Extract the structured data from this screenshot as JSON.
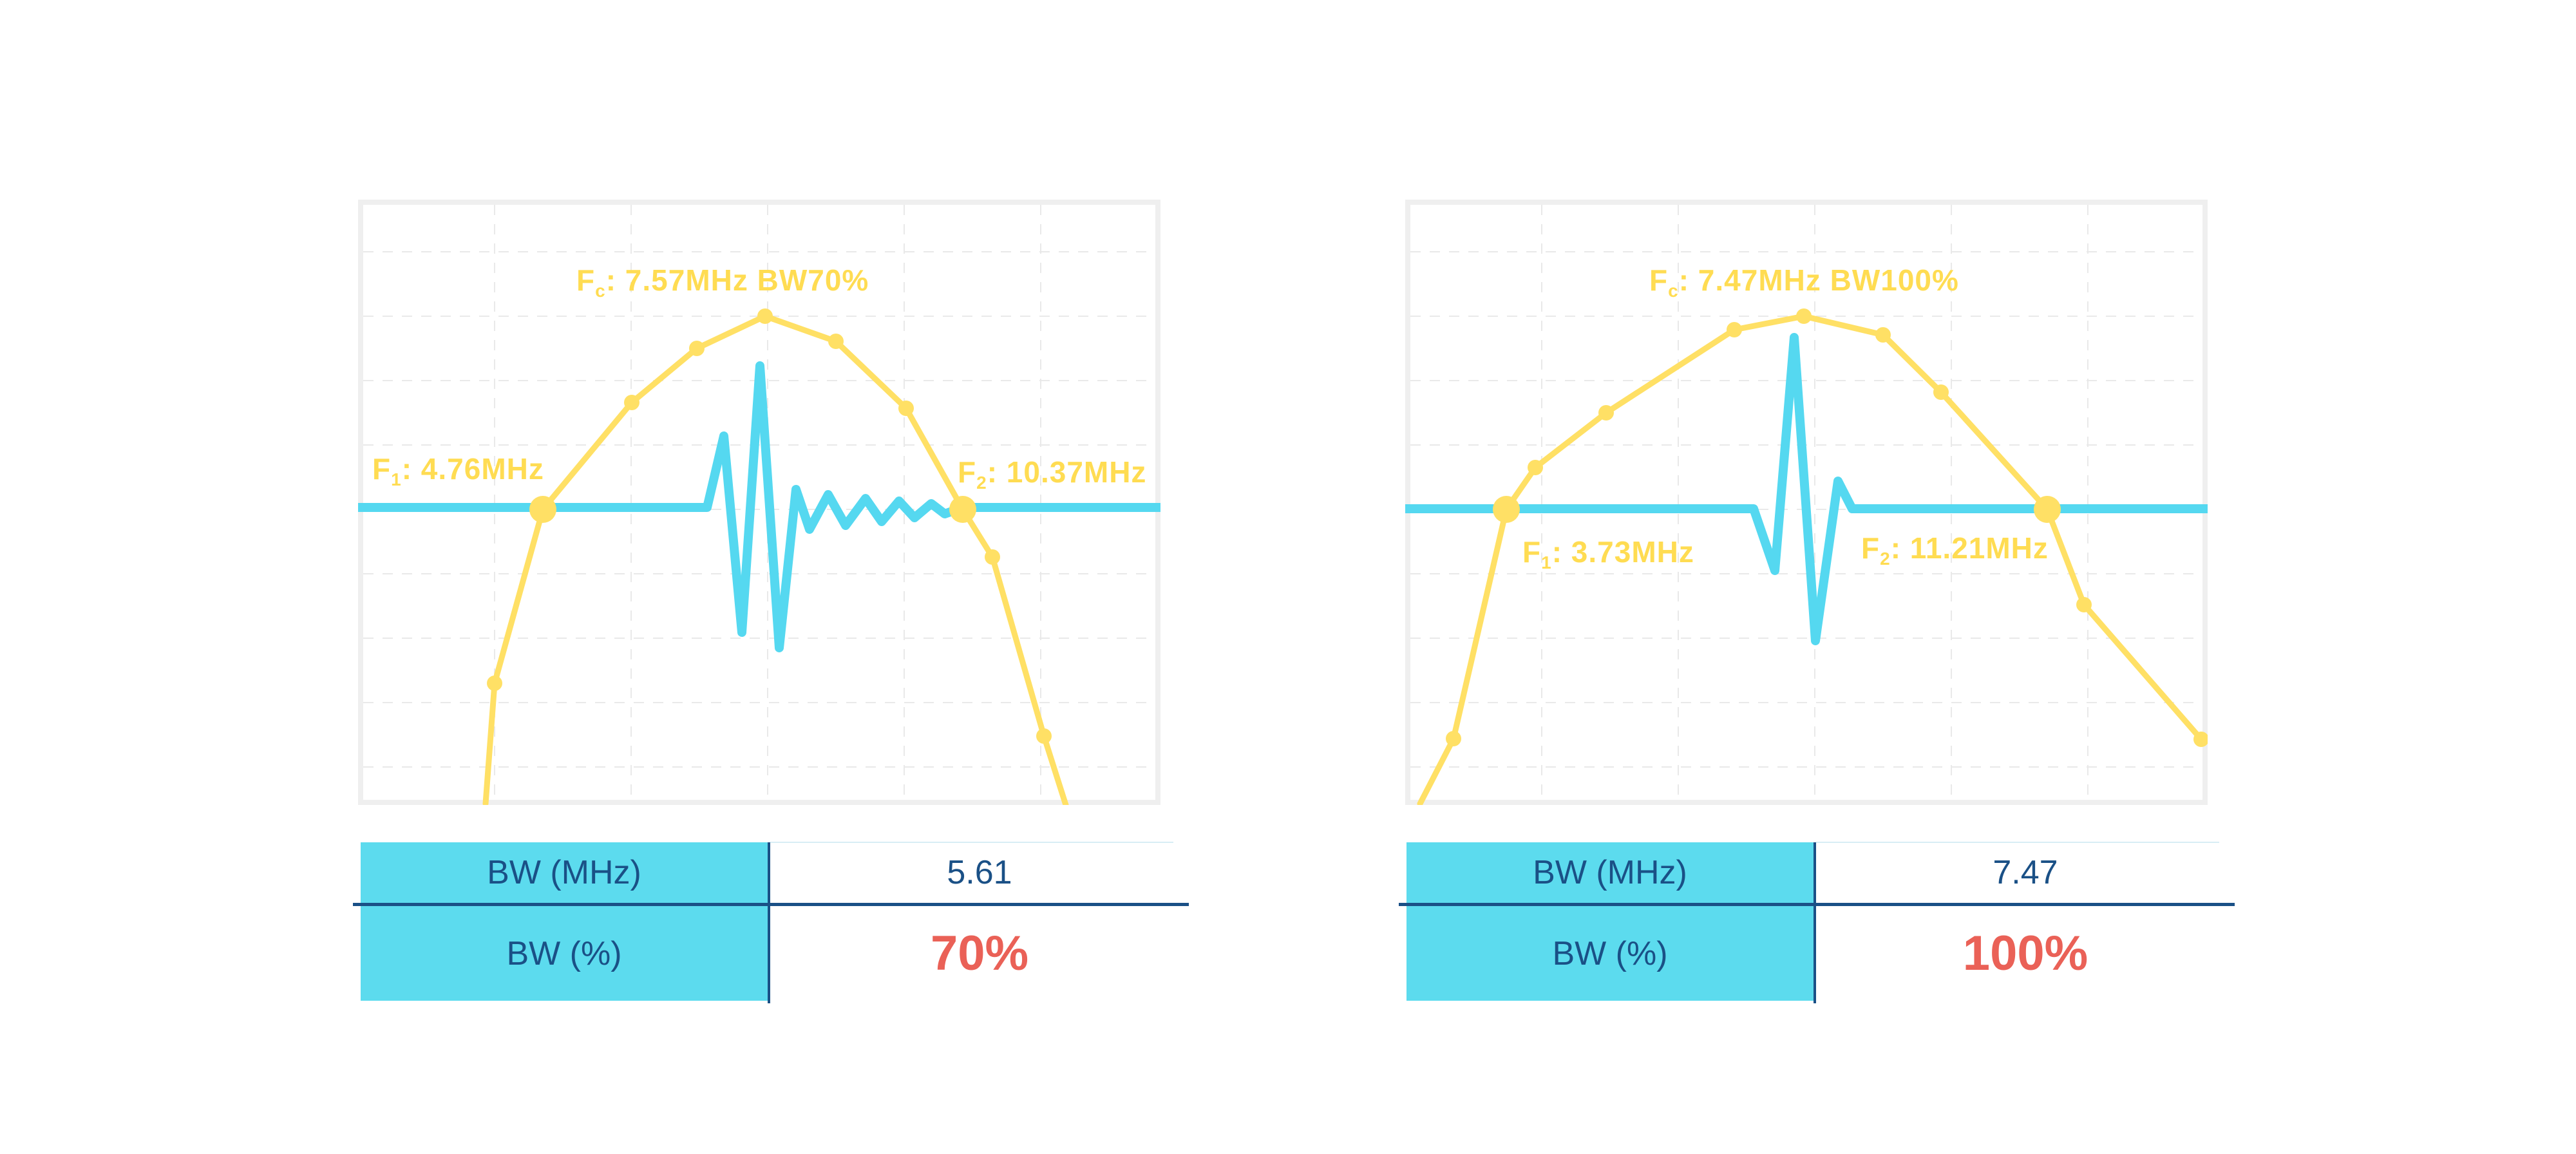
{
  "colors": {
    "envelope_yellow": "#FFE065",
    "label_yellow": "#FFDC52",
    "pulse_cyan": "#55D8F0",
    "table_header_cyan": "#5CDBEE",
    "navy": "#1A5086",
    "accent_red": "#EA6157",
    "grid_gray": "#E9E9E9",
    "plot_border_gray": "#EFEFEF"
  },
  "chart_data": [
    {
      "type": "line",
      "title": "Fc: 7.57MHz BW70%",
      "annotations": {
        "fc": {
          "base": "F",
          "sub": "c",
          "rest": ": 7.57MHz BW70%"
        },
        "f1": {
          "base": "F",
          "sub": "1",
          "rest": ": 4.76MHz"
        },
        "f2": {
          "base": "F",
          "sub": "2",
          "rest": ": 10.37MHz"
        }
      },
      "fc_mhz": 7.57,
      "f1_mhz": 4.76,
      "f2_mhz": 10.37,
      "bw_mhz": 5.61,
      "bw_pct": 70,
      "grid": {
        "v": [
          212,
          424,
          636,
          848,
          1060
        ],
        "h": [
          81,
          181,
          281,
          381,
          481,
          581,
          681,
          781,
          881
        ]
      },
      "series": [
        {
          "name": "spectrum-envelope",
          "color": "#FFE065",
          "points": [
            [
              198,
              938
            ],
            [
              212,
              751
            ],
            [
              287,
              481
            ],
            [
              425,
              315
            ],
            [
              526,
              231
            ],
            [
              632,
              181
            ],
            [
              742,
              220
            ],
            [
              851,
              324
            ],
            [
              939,
              481
            ],
            [
              985,
              555
            ],
            [
              1065,
              833
            ],
            [
              1099,
              940
            ]
          ],
          "markers": [
            [
              212,
              751
            ],
            [
              425,
              315
            ],
            [
              526,
              231
            ],
            [
              632,
              181
            ],
            [
              742,
              220
            ],
            [
              851,
              324
            ],
            [
              985,
              555
            ],
            [
              1065,
              833
            ]
          ],
          "big_markers": [
            [
              287,
              481
            ],
            [
              939,
              481
            ]
          ]
        },
        {
          "name": "pulse-echo-signal",
          "color": "#55D8F0",
          "points": [
            [
              0,
              478
            ],
            [
              542,
              478
            ],
            [
              568,
              367
            ],
            [
              596,
              672
            ],
            [
              624,
              258
            ],
            [
              654,
              696
            ],
            [
              680,
              450
            ],
            [
              701,
              512
            ],
            [
              730,
              458
            ],
            [
              757,
              506
            ],
            [
              788,
              464
            ],
            [
              813,
              500
            ],
            [
              840,
              468
            ],
            [
              864,
              494
            ],
            [
              890,
              472
            ],
            [
              911,
              488
            ],
            [
              939,
              478
            ],
            [
              1246,
              478
            ]
          ]
        }
      ],
      "table": {
        "rows": [
          {
            "label": "BW (MHz)",
            "value": "5.61"
          },
          {
            "label": "BW (%)",
            "value": "70%"
          }
        ]
      }
    },
    {
      "type": "line",
      "title": "Fc: 7.47MHz BW100%",
      "annotations": {
        "fc": {
          "base": "F",
          "sub": "c",
          "rest": ": 7.47MHz BW100%"
        },
        "f1": {
          "base": "F",
          "sub": "1",
          "rest": ": 3.73MHz"
        },
        "f2": {
          "base": "F",
          "sub": "2",
          "rest": ": 11.21MHz"
        }
      },
      "fc_mhz": 7.47,
      "f1_mhz": 3.73,
      "f2_mhz": 11.21,
      "bw_mhz": 7.47,
      "bw_pct": 100,
      "grid": {
        "v": [
          212,
          424,
          636,
          848,
          1060
        ],
        "h": [
          81,
          181,
          281,
          381,
          481,
          581,
          681,
          781,
          881
        ]
      },
      "series": [
        {
          "name": "spectrum-envelope",
          "color": "#FFE065",
          "points": [
            [
              23,
              938
            ],
            [
              75,
              837
            ],
            [
              157,
              481
            ],
            [
              202,
              416
            ],
            [
              312,
              331
            ],
            [
              511,
              202
            ],
            [
              619,
              181
            ],
            [
              742,
              210
            ],
            [
              832,
              299
            ],
            [
              997,
              481
            ],
            [
              1054,
              629
            ],
            [
              1236,
              838
            ]
          ],
          "markers": [
            [
              75,
              837
            ],
            [
              202,
              416
            ],
            [
              312,
              331
            ],
            [
              511,
              202
            ],
            [
              619,
              181
            ],
            [
              742,
              210
            ],
            [
              832,
              299
            ],
            [
              1054,
              629
            ],
            [
              1236,
              838
            ]
          ],
          "big_markers": [
            [
              157,
              481
            ],
            [
              997,
              481
            ]
          ]
        },
        {
          "name": "pulse-echo-signal",
          "color": "#55D8F0",
          "points": [
            [
              0,
              480
            ],
            [
              541,
              480
            ],
            [
              574,
              576
            ],
            [
              604,
              214
            ],
            [
              637,
              685
            ],
            [
              672,
              437
            ],
            [
              694,
              480
            ],
            [
              1246,
              480
            ]
          ]
        }
      ],
      "table": {
        "rows": [
          {
            "label": "BW (MHz)",
            "value": "7.47"
          },
          {
            "label": "BW (%)",
            "value": "100%"
          }
        ]
      }
    }
  ]
}
